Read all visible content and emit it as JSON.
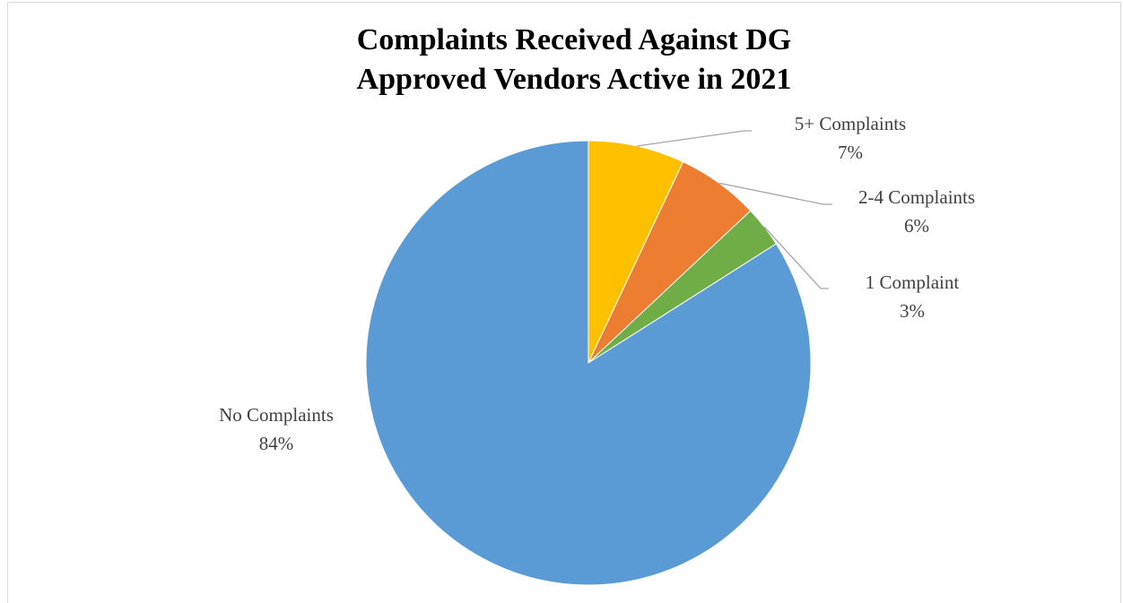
{
  "chart_data": {
    "type": "pie",
    "title": [
      "Complaints Received Against DG",
      "Approved Vendors Active in 2021"
    ],
    "categories": [
      "5+ Complaints",
      "2-4 Complaints",
      "1 Complaint",
      "No Complaints"
    ],
    "values": [
      7,
      6,
      3,
      84
    ],
    "value_labels": [
      "7%",
      "6%",
      "3%",
      "84%"
    ],
    "colors": [
      "#FFC000",
      "#ED7D31",
      "#70AD47",
      "#5B9BD5"
    ]
  }
}
